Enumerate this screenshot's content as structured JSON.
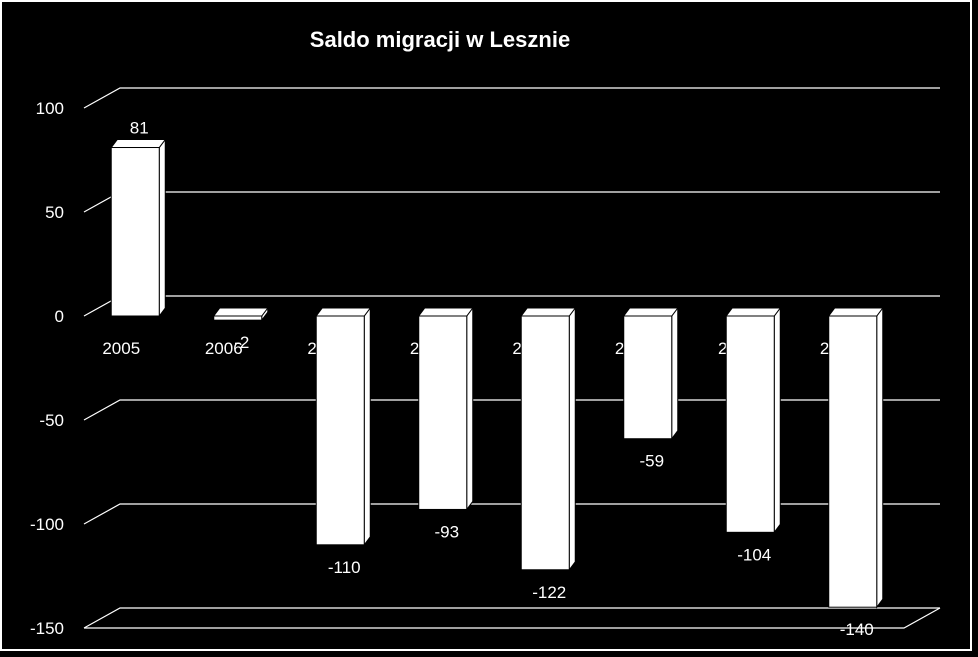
{
  "chart_data": {
    "type": "bar",
    "title": "Saldo migracji  w Lesznie",
    "xlabel": "",
    "ylabel": "",
    "categories": [
      "2005",
      "2006",
      "2007",
      "2008",
      "2009",
      "2010",
      "2011",
      "2012"
    ],
    "values": [
      81,
      -2,
      -110,
      -93,
      -122,
      -59,
      -104,
      -140
    ],
    "data_labels": [
      "81",
      "-2",
      "-110",
      "-93",
      "-122",
      "-59",
      "-104",
      "-140"
    ],
    "ylim": [
      -150,
      100
    ],
    "yticks": [
      "100",
      "50",
      "0",
      "-50",
      "-100",
      "-150"
    ],
    "grid": true,
    "legend": "none",
    "style": "3d",
    "colors": {
      "background": "#000000",
      "bars": "#ffffff",
      "grid": "#ffffff",
      "text": "#ffffff"
    }
  }
}
